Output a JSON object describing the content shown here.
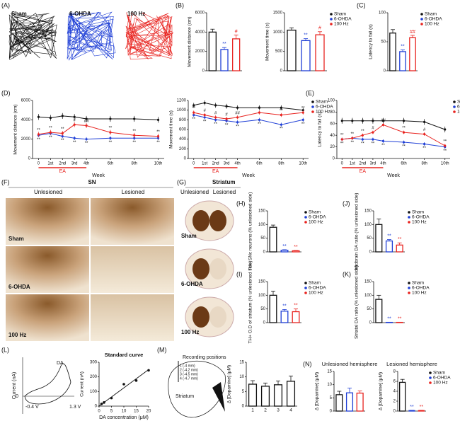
{
  "figure": {
    "A": {
      "panel": "(A)",
      "labels": [
        "Sham",
        "6-OHDA",
        "100 Hz"
      ],
      "colors": [
        "#111111",
        "#1f3fd6",
        "#e8231f"
      ]
    },
    "F": {
      "panel": "(F)",
      "title": "SN",
      "columns": [
        "Unlesioned",
        "Lesioned"
      ],
      "rows": [
        "Sham",
        "6-OHDA",
        "100 Hz"
      ]
    },
    "G": {
      "panel": "(G)",
      "title": "Striatum",
      "columns": [
        "Unlesioned",
        "Lesioned"
      ],
      "rows": [
        "Sham",
        "6-OHDA",
        "100 Hz"
      ]
    },
    "L": {
      "panel": "(L)",
      "ylabel": "Current (nA)",
      "labels": [
        "DA",
        "0",
        "-0.4 V",
        "1.3 V"
      ]
    },
    "M": {
      "panel": "(M)",
      "labels": [
        "Recording positions",
        "Striatum",
        "1 (-4 mm)",
        "2 (-4.2 mm)",
        "3 (-4.5 mm)",
        "4 (-4.7 mm)"
      ]
    }
  },
  "chart_data": [
    {
      "type": "bar",
      "panel": "(B)",
      "ylabel": "Movement distance (cm)",
      "categories": [
        null,
        null,
        null
      ],
      "values": [
        4000,
        2200,
        3300
      ],
      "errors": [
        300,
        200,
        400
      ],
      "annotations": [
        null,
        "**",
        "#"
      ],
      "colors": [
        "#111111",
        "#1f3fd6",
        "#e8231f"
      ],
      "ylim": [
        0,
        6000
      ],
      "yticks": [
        0,
        2000,
        4000,
        6000
      ]
    },
    {
      "type": "bar",
      "ylabel": "Movement time (s)",
      "categories": [
        null,
        null,
        null
      ],
      "values": [
        1050,
        780,
        930
      ],
      "errors": [
        60,
        50,
        80
      ],
      "annotations": [
        null,
        "**",
        "#"
      ],
      "colors": [
        "#111111",
        "#1f3fd6",
        "#e8231f"
      ],
      "legend": [
        "Sham",
        "6-OHDA",
        "100 Hz"
      ],
      "ylim": [
        0,
        1500
      ],
      "yticks": [
        0,
        500,
        1000,
        1500
      ]
    },
    {
      "type": "bar",
      "panel": "(C)",
      "ylabel": "Latency to fall (s)",
      "categories": [
        null,
        null,
        null
      ],
      "values": [
        65,
        33,
        57
      ],
      "errors": [
        6,
        3,
        4
      ],
      "annotations": [
        null,
        "**",
        "##"
      ],
      "colors": [
        "#111111",
        "#1f3fd6",
        "#e8231f"
      ],
      "legend": [
        "Sham",
        "6-OHDA",
        "100 Hz"
      ],
      "ylim": [
        0,
        100
      ],
      "yticks": [
        0,
        50,
        100
      ]
    },
    {
      "type": "line",
      "panel": "(D)",
      "ylabel": "Movement distance (cm)",
      "xlabel": "Week",
      "x": [
        0,
        1,
        2,
        3,
        4,
        6,
        8,
        10
      ],
      "xlim": [
        -0.5,
        10.5
      ],
      "xticks": [
        0,
        {
          "value": 1,
          "label": "1st"
        },
        {
          "value": 2,
          "label": "2nd"
        },
        {
          "value": 3,
          "label": "3rd"
        },
        {
          "value": 4,
          "label": "4th"
        },
        {
          "value": 6,
          "label": "6th"
        },
        {
          "value": 8,
          "label": "8th"
        },
        {
          "value": 10,
          "label": "10th"
        }
      ],
      "ylim": [
        0,
        6000
      ],
      "yticks": [
        0,
        2000,
        4000,
        6000
      ],
      "ea": {
        "label": "EA",
        "range": [
          0,
          4
        ]
      },
      "series": [
        {
          "name": "Sham",
          "color": "#111111",
          "values": [
            4300,
            4200,
            4400,
            4300,
            4100,
            4100,
            4100,
            4000
          ],
          "errors": [
            300,
            300,
            300,
            300,
            300,
            300,
            300,
            300
          ]
        },
        {
          "name": "6-OHDA",
          "color": "#1f3fd6",
          "values": [
            2400,
            2600,
            2300,
            2100,
            2000,
            2100,
            2100,
            2100
          ],
          "errors": [
            200,
            200,
            200,
            200,
            200,
            200,
            200,
            200
          ],
          "labels": [
            "**",
            "**",
            "**",
            "**",
            "**",
            "**",
            "**",
            "**"
          ]
        },
        {
          "name": "100 Hz",
          "color": "#e8231f",
          "values": [
            2500,
            2700,
            2600,
            3500,
            3400,
            2700,
            2400,
            2300
          ],
          "errors": [
            250,
            250,
            250,
            250,
            250,
            250,
            250,
            250
          ],
          "labels": [
            "**",
            "**",
            "**",
            "#",
            "##",
            "**",
            "**",
            "**"
          ]
        }
      ]
    },
    {
      "type": "line",
      "ylabel": "Movement time (s)",
      "xlabel": "Week",
      "x": [
        0,
        1,
        2,
        3,
        4,
        6,
        8,
        10
      ],
      "xlim": [
        -0.5,
        10.5
      ],
      "xticks": [
        0,
        {
          "value": 1,
          "label": "1st"
        },
        {
          "value": 2,
          "label": "2nd"
        },
        {
          "value": 3,
          "label": "3rd"
        },
        {
          "value": 4,
          "label": "4th"
        },
        {
          "value": 6,
          "label": "6th"
        },
        {
          "value": 8,
          "label": "8th"
        },
        {
          "value": 10,
          "label": "10th"
        }
      ],
      "ylim": [
        0,
        1200
      ],
      "yticks": [
        0,
        200,
        400,
        600,
        800,
        1000,
        1200
      ],
      "ea": {
        "label": "EA",
        "range": [
          0,
          4
        ]
      },
      "legend": [
        "Sham",
        "6-OHDA",
        "100 Hz"
      ],
      "series": [
        {
          "name": "Sham",
          "color": "#111111",
          "values": [
            1100,
            1150,
            1100,
            1080,
            1050,
            1050,
            1050,
            1000
          ],
          "errors": [
            50,
            50,
            50,
            50,
            50,
            50,
            50,
            50
          ]
        },
        {
          "name": "6-OHDA",
          "color": "#1f3fd6",
          "values": [
            900,
            850,
            800,
            780,
            750,
            800,
            700,
            800
          ],
          "errors": [
            40,
            40,
            40,
            40,
            40,
            40,
            40,
            40
          ],
          "labels": [
            "**",
            "**",
            "**",
            "**",
            "**",
            "**",
            "**",
            "**"
          ]
        },
        {
          "name": "100 Hz",
          "color": "#e8231f",
          "values": [
            950,
            900,
            850,
            820,
            850,
            950,
            900,
            950
          ],
          "errors": [
            40,
            40,
            40,
            40,
            40,
            40,
            40,
            40
          ],
          "labels": [
            "**",
            "#",
            "#",
            "#",
            "##",
            "*",
            "**",
            "**"
          ]
        }
      ]
    },
    {
      "type": "line",
      "panel": "(E)",
      "ylabel": "Latency to fall (s)",
      "xlabel": "Week",
      "x": [
        0,
        1,
        2,
        3,
        4,
        6,
        8,
        10
      ],
      "xlim": [
        -0.5,
        10.5
      ],
      "xticks": [
        0,
        {
          "value": 1,
          "label": "1st"
        },
        {
          "value": 2,
          "label": "2nd"
        },
        {
          "value": 3,
          "label": "3rd"
        },
        {
          "value": 4,
          "label": "4th"
        },
        {
          "value": 6,
          "label": "6th"
        },
        {
          "value": 8,
          "label": "8th"
        },
        {
          "value": 10,
          "label": "10th"
        }
      ],
      "ylim": [
        0,
        100
      ],
      "yticks": [
        0,
        20,
        40,
        60,
        80,
        100
      ],
      "ea": {
        "label": "EA",
        "range": [
          0,
          4
        ]
      },
      "legend": [
        "Sham",
        "6-OHDA",
        "100 Hz"
      ],
      "series": [
        {
          "name": "Sham",
          "color": "#111111",
          "values": [
            65,
            65,
            65,
            65,
            65,
            65,
            63,
            50
          ],
          "errors": [
            5,
            5,
            5,
            5,
            5,
            5,
            5,
            5
          ]
        },
        {
          "name": "6-OHDA",
          "color": "#1f3fd6",
          "values": [
            33,
            35,
            33,
            33,
            30,
            28,
            25,
            20
          ],
          "errors": [
            3,
            3,
            3,
            3,
            3,
            3,
            3,
            3
          ],
          "labels": [
            "**",
            "**",
            "**",
            "**",
            "**",
            "**",
            "**",
            "**"
          ]
        },
        {
          "name": "100 Hz",
          "color": "#e8231f",
          "values": [
            33,
            35,
            40,
            45,
            58,
            45,
            42,
            22
          ],
          "errors": [
            3,
            3,
            3,
            3,
            3,
            3,
            3,
            3
          ],
          "labels": [
            "**",
            "**",
            "**",
            "#",
            "##",
            "**",
            "#",
            "**"
          ]
        }
      ]
    },
    {
      "type": "bar",
      "panel": "(H)",
      "ylabel": "TH+ SNc neurons (% unlesioned side)",
      "categories": [
        null,
        null,
        null
      ],
      "values": [
        90,
        6,
        4
      ],
      "errors": [
        8,
        2,
        1
      ],
      "annotations": [
        null,
        "**",
        "**"
      ],
      "colors": [
        "#111111",
        "#1f3fd6",
        "#e8231f"
      ],
      "legend": [
        "Sham",
        "6-OHDA",
        "100 Hz"
      ],
      "ylim": [
        0,
        150
      ],
      "yticks": [
        0,
        50,
        100,
        150
      ]
    },
    {
      "type": "bar",
      "panel": "(J)",
      "ylabel": "Midbrain DA ratio (% unlesioned side)",
      "categories": [
        null,
        null,
        null
      ],
      "values": [
        100,
        40,
        25
      ],
      "errors": [
        20,
        5,
        8
      ],
      "annotations": [
        null,
        "**",
        "**"
      ],
      "colors": [
        "#111111",
        "#1f3fd6",
        "#e8231f"
      ],
      "legend": [
        "Sham",
        "6-OHDA",
        "100 Hz"
      ],
      "ylim": [
        0,
        150
      ],
      "yticks": [
        0,
        50,
        100,
        150
      ]
    },
    {
      "type": "bar",
      "panel": "(I)",
      "ylabel": "TH+ O.D of striatum (% unlesioned side)",
      "categories": [
        null,
        null,
        null
      ],
      "values": [
        100,
        42,
        40
      ],
      "errors": [
        15,
        6,
        10
      ],
      "annotations": [
        null,
        "**",
        "**"
      ],
      "colors": [
        "#111111",
        "#1f3fd6",
        "#e8231f"
      ],
      "legend": [
        "Sham",
        "6-OHDA",
        "100 Hz"
      ],
      "ylim": [
        0,
        150
      ],
      "yticks": [
        0,
        50,
        100,
        150
      ]
    },
    {
      "type": "bar",
      "panel": "(K)",
      "ylabel": "Striatal DA ratio (% unlesioned side)",
      "categories": [
        null,
        null,
        null
      ],
      "values": [
        85,
        1,
        1
      ],
      "errors": [
        15,
        0.5,
        0.5
      ],
      "annotations": [
        null,
        "**",
        "**"
      ],
      "colors": [
        "#111111",
        "#1f3fd6",
        "#e8231f"
      ],
      "legend": [
        "Sham",
        "6-OHDA",
        "100 Hz"
      ],
      "ylim": [
        0,
        150
      ],
      "yticks": [
        0,
        50,
        100,
        150
      ]
    },
    {
      "type": "scatter",
      "title": "Standard curve",
      "xlabel": "DA concentration (μM)",
      "ylabel": "Current (nA)",
      "x": [
        1,
        2,
        5,
        10,
        15,
        20
      ],
      "values": [
        15,
        25,
        55,
        150,
        175,
        245
      ],
      "fit": {
        "x": [
          0,
          20
        ],
        "y": [
          0,
          250
        ]
      },
      "color": "#111111",
      "xlim": [
        0,
        20
      ],
      "xticks": [
        0,
        5,
        10,
        15,
        20
      ],
      "ylim": [
        0,
        300
      ],
      "yticks": [
        0,
        100,
        200,
        300
      ]
    },
    {
      "type": "bar",
      "ylabel": "Δ [Dopamine] (μM)",
      "xlabel": "Recording positions",
      "categories": [
        "1",
        "2",
        "3",
        "4"
      ],
      "values": [
        7.5,
        6.8,
        7.3,
        8.5
      ],
      "errors": [
        1.2,
        1.1,
        1.3,
        1.8
      ],
      "colors": [
        "#111111",
        "#111111",
        "#111111",
        "#111111"
      ],
      "ylim": [
        0,
        15
      ],
      "yticks": [
        0,
        5,
        10,
        15
      ]
    },
    {
      "type": "bar",
      "panel": "(N)",
      "title": "Unlesioned hemisphere",
      "ylabel": "Δ [Dopamine] (μM)",
      "categories": [
        null,
        null,
        null
      ],
      "values": [
        6.2,
        6.9,
        6.8
      ],
      "errors": [
        1.3,
        1.8,
        0.8
      ],
      "colors": [
        "#111111",
        "#1f3fd6",
        "#e8231f"
      ],
      "ylim": [
        0,
        15
      ],
      "yticks": [
        0,
        5,
        10,
        15
      ]
    },
    {
      "type": "bar",
      "title": "Lesioned hemisphere",
      "ylabel": "Δ [Dopamine] (μM)",
      "categories": [
        null,
        null,
        null
      ],
      "values": [
        5.8,
        0.1,
        0.1
      ],
      "errors": [
        0.6,
        0.05,
        0.05
      ],
      "annotations": [
        null,
        "**",
        "**"
      ],
      "colors": [
        "#111111",
        "#1f3fd6",
        "#e8231f"
      ],
      "legend": [
        "Sham",
        "6-OHDA",
        "100 Hz"
      ],
      "ylim": [
        0,
        8
      ],
      "yticks": [
        0,
        2,
        4,
        6,
        8
      ]
    }
  ]
}
